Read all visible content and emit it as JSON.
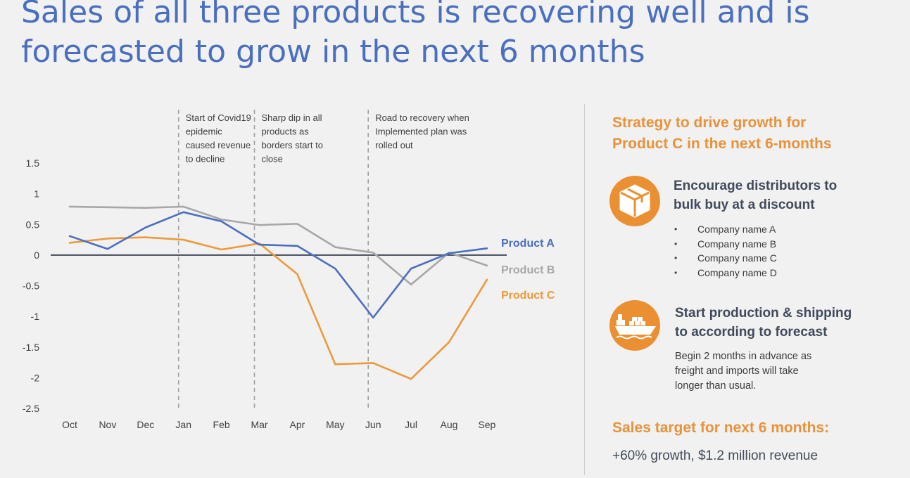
{
  "title": {
    "line1": "Sales of all three products is recovering well and is",
    "line2": "forecasted to grow in the next 6 months"
  },
  "chart_data": {
    "type": "line",
    "categories": [
      "Oct",
      "Nov",
      "Dec",
      "Jan",
      "Feb",
      "Mar",
      "Apr",
      "May",
      "Jun",
      "Jul",
      "Aug",
      "Sep"
    ],
    "y_ticks": [
      "1.5",
      "1",
      "0.5",
      "0",
      "-0.5",
      "-1",
      "-1.5",
      "-2",
      "-2.5"
    ],
    "ylim": [
      -2.5,
      1.5
    ],
    "grid": false,
    "series": [
      {
        "name": "Product A",
        "color": "#4a6fbf",
        "values": [
          0.31,
          0.1,
          0.45,
          0.7,
          0.55,
          0.17,
          0.15,
          -0.22,
          -1.02,
          -0.22,
          0.03,
          0.11
        ]
      },
      {
        "name": "Product B",
        "color": "#a7a7a7",
        "values": [
          0.79,
          0.78,
          0.77,
          0.79,
          0.58,
          0.49,
          0.51,
          0.13,
          0.04,
          -0.48,
          0.04,
          -0.17
        ]
      },
      {
        "name": "Product C",
        "color": "#ec9a3c",
        "values": [
          0.2,
          0.27,
          0.29,
          0.25,
          0.09,
          0.19,
          -0.31,
          -1.78,
          -1.76,
          -2.02,
          -1.42,
          -0.4
        ]
      }
    ],
    "annotations": [
      {
        "category": "Jan",
        "lines": [
          "Start of Covid19",
          "epidemic",
          "caused revenue",
          "to decline"
        ]
      },
      {
        "category": "Mar",
        "lines": [
          "Sharp dip in all",
          "products as",
          "borders start to",
          "close"
        ]
      },
      {
        "category": "Jun",
        "lines": [
          "Road to recovery when",
          "Implemented plan was",
          "rolled out"
        ]
      }
    ]
  },
  "strategy": {
    "title_line1": "Strategy to drive growth for",
    "title_line2": "Product C in the next 6-months",
    "block1": {
      "icon": "package-box-icon",
      "heading_line1": "Encourage distributors to",
      "heading_line2": "bulk buy at a discount",
      "bullets": [
        "Company name A",
        "Company name B",
        "Company name C",
        "Company name D"
      ]
    },
    "block2": {
      "icon": "cargo-ship-icon",
      "heading_line1": "Start production & shipping",
      "heading_line2": "to according to forecast",
      "body_line1": "Begin 2 months in advance as",
      "body_line2": "freight and imports will take",
      "body_line3": "longer than usual."
    },
    "target_heading": "Sales target for next 6 months:",
    "target_value": "+60% growth, $1.2 million revenue",
    "accent_color": "#eb9032"
  }
}
